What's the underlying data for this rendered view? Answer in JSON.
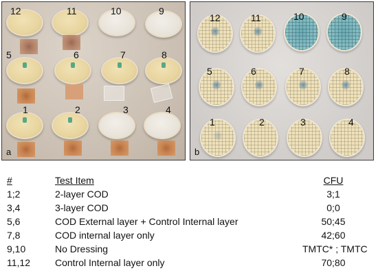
{
  "figure": {
    "panel_a": {
      "letter": "a"
    },
    "panel_b": {
      "letter": "b"
    },
    "dish_labels": [
      "12",
      "11",
      "10",
      "9",
      "5",
      "6",
      "7",
      "8",
      "1",
      "2",
      "3",
      "4"
    ]
  },
  "table": {
    "headers": {
      "number": "#",
      "item": "Test Item",
      "cfu": "CFU"
    },
    "rows": [
      {
        "number": "1;2",
        "item": "2-layer COD",
        "cfu": "3;1"
      },
      {
        "number": "3,4",
        "item": "3-layer COD",
        "cfu": "0;0"
      },
      {
        "number": "5,6",
        "item": "COD External layer + Control Internal layer",
        "cfu": "50;45"
      },
      {
        "number": "7,8",
        "item": "COD internal layer only",
        "cfu": "42;60"
      },
      {
        "number": "9,10",
        "item": "No Dressing",
        "cfu": "TMTC* ; TMTC"
      },
      {
        "number": "11,12",
        "item": "Control Internal layer only",
        "cfu": "70;80"
      }
    ]
  }
}
